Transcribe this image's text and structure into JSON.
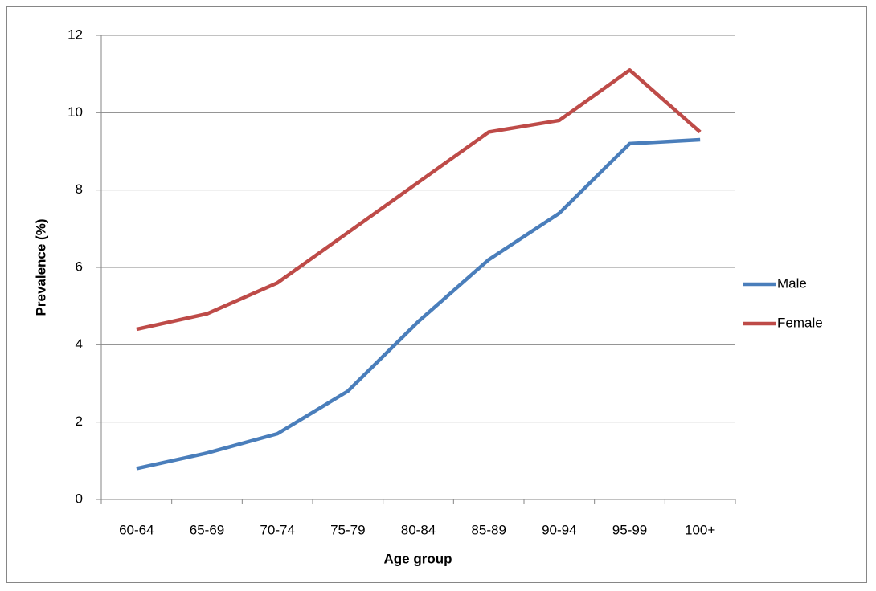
{
  "chart_data": {
    "type": "line",
    "x_label": "Age group",
    "y_label": "Prevalence (%)",
    "categories": [
      "60-64",
      "65-69",
      "70-74",
      "75-79",
      "80-84",
      "85-89",
      "90-94",
      "95-99",
      "100+"
    ],
    "series": [
      {
        "name": "Male",
        "color": "#4a7ebb",
        "values": [
          0.8,
          1.2,
          1.7,
          2.8,
          4.6,
          6.2,
          7.4,
          9.2,
          9.3
        ]
      },
      {
        "name": "Female",
        "color": "#be4b48",
        "values": [
          4.4,
          4.8,
          5.6,
          6.9,
          8.2,
          9.5,
          9.8,
          11.1,
          9.5
        ]
      }
    ],
    "ylim": [
      0,
      12
    ],
    "yticks": [
      0,
      2,
      4,
      6,
      8,
      10,
      12
    ],
    "grid": true,
    "legend": "right"
  }
}
